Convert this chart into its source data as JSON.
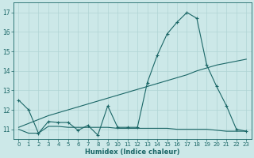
{
  "title": "",
  "xlabel": "Humidex (Indice chaleur)",
  "ylabel": "",
  "background_color": "#cce8e8",
  "grid_color": "#b0d4d4",
  "line_color": "#1a6666",
  "x_ticks": [
    0,
    1,
    2,
    3,
    4,
    5,
    6,
    7,
    8,
    9,
    10,
    11,
    12,
    13,
    14,
    15,
    16,
    17,
    18,
    19,
    20,
    21,
    22,
    23
  ],
  "y_ticks": [
    11,
    12,
    13,
    14,
    15,
    16,
    17
  ],
  "ylim": [
    10.5,
    17.5
  ],
  "xlim": [
    -0.5,
    23.5
  ],
  "line1_x": [
    0,
    1,
    2,
    3,
    4,
    5,
    6,
    7,
    8,
    9,
    10,
    11,
    12,
    13,
    14,
    15,
    16,
    17,
    18,
    19,
    20,
    21,
    22,
    23
  ],
  "line1_y": [
    12.5,
    12.0,
    10.8,
    11.4,
    11.35,
    11.35,
    10.95,
    11.2,
    10.7,
    12.2,
    11.1,
    11.1,
    11.1,
    13.4,
    14.8,
    15.9,
    16.5,
    17.0,
    16.7,
    14.3,
    13.2,
    12.2,
    11.0,
    10.9
  ],
  "line2_x": [
    0,
    2,
    3,
    4,
    5,
    6,
    7,
    8,
    9,
    10,
    11,
    12,
    13,
    14,
    15,
    16,
    17,
    18,
    19,
    20,
    21,
    22,
    23
  ],
  "line2_y": [
    11.1,
    11.5,
    11.7,
    11.85,
    12.0,
    12.15,
    12.3,
    12.45,
    12.6,
    12.75,
    12.9,
    13.05,
    13.2,
    13.35,
    13.5,
    13.65,
    13.8,
    14.0,
    14.15,
    14.3,
    14.4,
    14.5,
    14.6
  ],
  "line3_x": [
    0,
    1,
    2,
    3,
    4,
    5,
    6,
    7,
    8,
    9,
    10,
    11,
    12,
    13,
    14,
    15,
    16,
    17,
    18,
    19,
    20,
    21,
    22,
    23
  ],
  "line3_y": [
    11.0,
    10.8,
    10.8,
    11.15,
    11.15,
    11.1,
    11.1,
    11.1,
    11.1,
    11.1,
    11.05,
    11.05,
    11.05,
    11.05,
    11.05,
    11.05,
    11.0,
    11.0,
    11.0,
    11.0,
    10.95,
    10.9,
    10.9,
    10.9
  ]
}
